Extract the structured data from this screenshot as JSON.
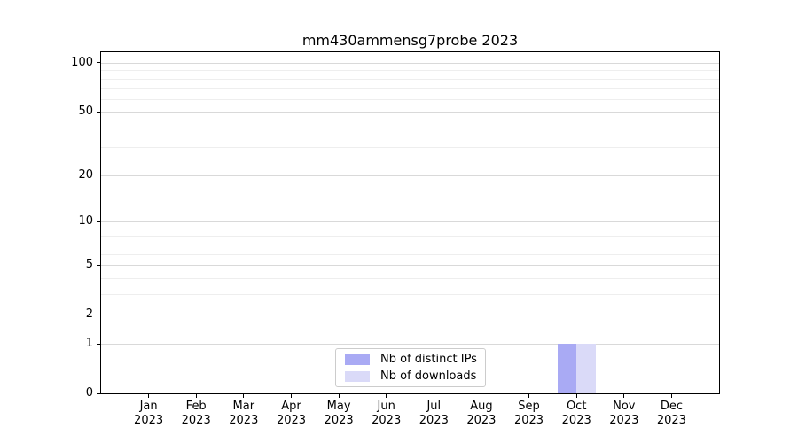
{
  "chart_data": {
    "type": "bar",
    "title": "mm430ammensg7probe 2023",
    "categories": [
      "Jan 2023",
      "Feb 2023",
      "Mar 2023",
      "Apr 2023",
      "May 2023",
      "Jun 2023",
      "Jul 2023",
      "Aug 2023",
      "Sep 2023",
      "Oct 2023",
      "Nov 2023",
      "Dec 2023"
    ],
    "series": [
      {
        "name": "Nb of distinct IPs",
        "color": "#a9aaf4",
        "values": [
          0,
          0,
          0,
          0,
          0,
          0,
          0,
          0,
          0,
          1,
          0,
          0
        ]
      },
      {
        "name": "Nb of downloads",
        "color": "#dadaf8",
        "values": [
          0,
          0,
          0,
          0,
          0,
          0,
          0,
          0,
          0,
          1,
          0,
          0
        ]
      }
    ],
    "yscale": "log1p",
    "yticks": [
      0,
      1,
      2,
      5,
      10,
      20,
      50,
      100
    ],
    "yticks_minor": [
      3,
      4,
      6,
      7,
      8,
      9,
      30,
      40,
      60,
      70,
      80,
      90
    ],
    "ylim": [
      0,
      116
    ],
    "grid": true,
    "legend_position": "lower center"
  },
  "colors": {
    "grid_major": "#d9d9d9",
    "grid_minor": "#eeeeee",
    "spine": "#000000",
    "legend_border": "#cccccc"
  }
}
